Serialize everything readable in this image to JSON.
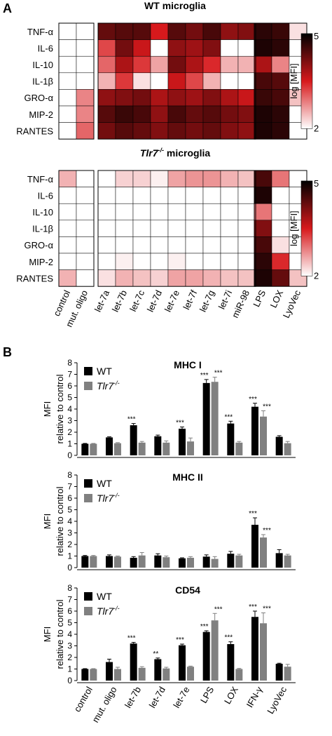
{
  "panel_labels": [
    "A",
    "B"
  ],
  "chart_data": [
    {
      "type": "heatmap",
      "title": "WT microglia",
      "title_italic": false,
      "rows": [
        "TNF-α",
        "IL-6",
        "IL-10",
        "IL-1β",
        "GRO-α",
        "MIP-2",
        "RANTES"
      ],
      "columns": [
        "control",
        "mut. oligo",
        "let-7a",
        "let-7b",
        "let-7c",
        "let-7d",
        "let-7e",
        "let-7f",
        "let-7g",
        "let-7i",
        "miR-98",
        "LPS",
        "LOX",
        "LyoVec"
      ],
      "column_groups": [
        [
          0,
          1
        ],
        [
          2,
          10
        ],
        [
          11,
          13
        ]
      ],
      "values": [
        [
          2.0,
          2.0,
          4.3,
          4.4,
          4.4,
          3.5,
          4.4,
          4.2,
          4.5,
          4.0,
          4.1,
          4.7,
          4.6,
          2.2
        ],
        [
          2.0,
          2.0,
          3.2,
          4.2,
          3.6,
          2.0,
          4.0,
          3.9,
          4.1,
          2.0,
          2.0,
          4.8,
          4.7,
          2.0
        ],
        [
          2.0,
          2.0,
          3.0,
          3.8,
          3.3,
          2.6,
          4.2,
          3.8,
          3.4,
          2.5,
          2.5,
          3.8,
          2.8,
          2.0
        ],
        [
          2.0,
          2.0,
          2.5,
          3.3,
          2.2,
          2.0,
          3.6,
          3.2,
          2.5,
          2.0,
          2.0,
          4.5,
          4.4,
          2.0
        ],
        [
          2.0,
          2.8,
          4.0,
          4.1,
          4.2,
          3.8,
          4.0,
          3.9,
          4.1,
          3.8,
          3.6,
          4.6,
          4.5,
          2.4
        ],
        [
          2.0,
          2.8,
          4.4,
          4.6,
          4.5,
          4.0,
          4.5,
          4.3,
          4.4,
          4.2,
          4.1,
          4.8,
          4.7,
          2.0
        ],
        [
          2.0,
          3.0,
          4.2,
          4.4,
          4.3,
          4.1,
          4.3,
          4.2,
          4.3,
          4.1,
          4.0,
          4.8,
          4.7,
          2.0
        ]
      ],
      "colorbar": {
        "label": "log [MFI]",
        "min": 2,
        "max": 5,
        "colors": [
          "#ffffff",
          "#d7191c",
          "#000000"
        ]
      }
    },
    {
      "type": "heatmap",
      "title": "Tlr7",
      "title_superscript": "-/-",
      "title_suffix": " microglia",
      "title_italic": true,
      "rows": [
        "TNF-α",
        "IL-6",
        "IL-10",
        "IL-1β",
        "GRO-α",
        "MIP-2",
        "RANTES"
      ],
      "columns": [
        "control",
        "mut. oligo",
        "let-7a",
        "let-7b",
        "let-7c",
        "let-7d",
        "let-7e",
        "let-7f",
        "let-7g",
        "let-7i",
        "miR-98",
        "LPS",
        "LOX",
        "LyoVec"
      ],
      "column_groups": [
        [
          0,
          1
        ],
        [
          2,
          10
        ],
        [
          11,
          13
        ]
      ],
      "values": [
        [
          2.5,
          2.0,
          2.0,
          2.3,
          2.3,
          2.1,
          2.6,
          2.7,
          2.7,
          2.5,
          2.4,
          4.5,
          2.9,
          2.0
        ],
        [
          2.0,
          2.0,
          2.0,
          2.0,
          2.0,
          2.0,
          2.0,
          2.0,
          2.0,
          2.0,
          2.0,
          4.8,
          2.0,
          2.0
        ],
        [
          2.0,
          2.0,
          2.0,
          2.0,
          2.0,
          2.0,
          2.0,
          2.0,
          2.0,
          2.0,
          2.0,
          2.9,
          2.0,
          2.0
        ],
        [
          2.0,
          2.0,
          2.0,
          2.0,
          2.0,
          2.0,
          2.0,
          2.0,
          2.0,
          2.0,
          2.0,
          4.1,
          2.0,
          2.0
        ],
        [
          2.0,
          2.0,
          2.0,
          2.0,
          2.0,
          2.0,
          2.0,
          2.0,
          2.0,
          2.0,
          2.0,
          4.5,
          2.2,
          2.0
        ],
        [
          2.0,
          2.0,
          2.0,
          2.1,
          2.0,
          2.0,
          2.1,
          2.0,
          2.0,
          2.0,
          2.0,
          4.7,
          3.4,
          2.0
        ],
        [
          2.5,
          2.0,
          2.2,
          2.5,
          2.4,
          2.3,
          2.6,
          2.6,
          2.5,
          2.4,
          2.4,
          4.8,
          4.3,
          2.4
        ]
      ],
      "colorbar": {
        "label": "log [MFI]",
        "min": 2,
        "max": 5,
        "colors": [
          "#ffffff",
          "#d7191c",
          "#000000"
        ]
      }
    },
    {
      "type": "bar",
      "title": "MHC I",
      "ylabel": "MFI",
      "ylabel2": "relative to control",
      "ylim": [
        0,
        8
      ],
      "yticks": [
        0,
        1,
        2,
        3,
        4,
        5,
        6,
        7,
        8
      ],
      "categories": [
        "control",
        "mut. oligo",
        "let-7b",
        "let-7d",
        "let-7e",
        "LPS",
        "LOX",
        "IFN-γ",
        "LyoVec"
      ],
      "series": [
        {
          "name": "WT",
          "color": "#000000",
          "values": [
            1.0,
            1.55,
            2.6,
            1.65,
            2.3,
            6.25,
            2.75,
            4.2,
            1.6
          ],
          "errors": [
            0.03,
            0.05,
            0.15,
            0.1,
            0.15,
            0.3,
            0.2,
            0.3,
            0.1
          ]
        },
        {
          "name": "Tlr7",
          "name_superscript": "-/-",
          "color": "#808080",
          "values": [
            1.0,
            1.05,
            1.1,
            1.1,
            1.2,
            6.35,
            1.1,
            3.35,
            1.05
          ],
          "errors": [
            0.03,
            0.05,
            0.1,
            0.15,
            0.3,
            0.4,
            0.1,
            0.5,
            0.15
          ]
        }
      ],
      "significance": [
        [
          "",
          "",
          "***",
          "",
          "***",
          "***",
          "***",
          "***",
          ""
        ],
        [
          "",
          "",
          "",
          "",
          "",
          "***",
          "",
          "***",
          ""
        ]
      ],
      "legend_position": "top-left"
    },
    {
      "type": "bar",
      "title": "MHC II",
      "ylabel": "MFI",
      "ylabel2": "relative to control",
      "ylim": [
        0,
        8
      ],
      "yticks": [
        0,
        1,
        2,
        3,
        4,
        5,
        6,
        7,
        8
      ],
      "categories": [
        "control",
        "mut. oligo",
        "let-7b",
        "let-7d",
        "let-7e",
        "LPS",
        "LOX",
        "IFN-γ",
        "LyoVec"
      ],
      "series": [
        {
          "name": "WT",
          "color": "#000000",
          "values": [
            1.0,
            1.0,
            0.85,
            1.05,
            0.8,
            0.95,
            1.2,
            3.7,
            1.25
          ],
          "errors": [
            0.05,
            0.1,
            0.1,
            0.15,
            0.05,
            0.15,
            0.2,
            0.6,
            0.3
          ]
        },
        {
          "name": "Tlr7",
          "name_superscript": "-/-",
          "color": "#808080",
          "values": [
            1.0,
            0.95,
            1.05,
            0.9,
            0.85,
            0.75,
            1.05,
            2.6,
            1.05
          ],
          "errors": [
            0.05,
            0.05,
            0.25,
            0.1,
            0.1,
            0.2,
            0.1,
            0.25,
            0.1
          ]
        }
      ],
      "significance": [
        [
          "",
          "",
          "",
          "",
          "",
          "",
          "",
          "***",
          ""
        ],
        [
          "",
          "",
          "",
          "",
          "",
          "",
          "",
          "***",
          ""
        ]
      ],
      "legend_position": "top-left"
    },
    {
      "type": "bar",
      "title": "CD54",
      "ylabel": "MFI",
      "ylabel2": "relative to control",
      "ylim": [
        0,
        8
      ],
      "yticks": [
        0,
        1,
        2,
        3,
        4,
        5,
        6,
        7,
        8
      ],
      "categories": [
        "control",
        "mut. oligo",
        "let-7b",
        "let-7d",
        "let-7e",
        "LPS",
        "LOX",
        "IFN-γ",
        "LyoVec"
      ],
      "series": [
        {
          "name": "WT",
          "color": "#000000",
          "values": [
            1.0,
            1.6,
            3.2,
            1.85,
            3.05,
            4.2,
            3.15,
            5.5,
            1.45
          ],
          "errors": [
            0.03,
            0.25,
            0.1,
            0.1,
            0.1,
            0.1,
            0.2,
            0.5,
            0.05
          ]
        },
        {
          "name": "Tlr7",
          "name_superscript": "-/-",
          "color": "#808080",
          "values": [
            1.0,
            1.0,
            1.1,
            1.05,
            1.2,
            5.2,
            1.0,
            4.95,
            1.2
          ],
          "errors": [
            0.03,
            0.15,
            0.1,
            0.1,
            0.05,
            0.6,
            0.05,
            0.9,
            0.2
          ]
        }
      ],
      "significance": [
        [
          "",
          "",
          "***",
          "**",
          "***",
          "***",
          "***",
          "***",
          ""
        ],
        [
          "",
          "",
          "",
          "",
          "",
          "***",
          "",
          "***",
          ""
        ]
      ],
      "legend_position": "top-left"
    }
  ]
}
